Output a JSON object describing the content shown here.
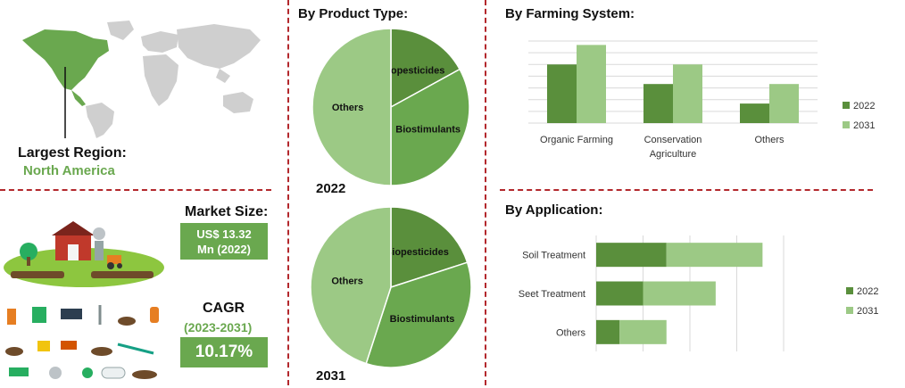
{
  "colors": {
    "dark_green": "#5a8f3c",
    "mid_green": "#6aa84f",
    "light_green": "#9cc985",
    "divider_red": "#b3282d"
  },
  "region": {
    "label": "Largest Region:",
    "value": "North America"
  },
  "market": {
    "size_label": "Market Size:",
    "size_value_line1": "US$ 13.32",
    "size_value_line2": "Mn (2022)",
    "cagr_label": "CAGR",
    "cagr_period": "(2023-2031)",
    "cagr_value": "10.17%"
  },
  "product_type": {
    "heading": "By Product Type:"
  },
  "farming_system": {
    "heading": "By Farming System:"
  },
  "application": {
    "heading": "By Application:"
  },
  "icons": [
    "world-map-icon",
    "farm-icon",
    "tools-icon"
  ],
  "chart_data": [
    {
      "type": "pie",
      "name": "product-type-2022",
      "title": "2022",
      "categories": [
        "Biopesticides",
        "Biostimulants",
        "Others"
      ],
      "values": [
        17,
        33,
        50
      ],
      "colors": [
        "#5a8f3c",
        "#6aa84f",
        "#9cc985"
      ]
    },
    {
      "type": "pie",
      "name": "product-type-2031",
      "title": "2031",
      "categories": [
        "Biopesticides",
        "Biostimulants",
        "Others"
      ],
      "values": [
        20,
        35,
        45
      ],
      "colors": [
        "#5a8f3c",
        "#6aa84f",
        "#9cc985"
      ]
    },
    {
      "type": "bar",
      "name": "farming-system",
      "categories": [
        "Organic Farming",
        "Conservation Agriculture",
        "Others"
      ],
      "category_lines": [
        [
          "Organic Farming"
        ],
        [
          "Conservation",
          "Agriculture"
        ],
        [
          "Others"
        ]
      ],
      "series": [
        {
          "name": "2022",
          "values": [
            3,
            2,
            1
          ],
          "color": "#5a8f3c"
        },
        {
          "name": "2031",
          "values": [
            4,
            3,
            2
          ],
          "color": "#9cc985"
        }
      ],
      "ylim": [
        0,
        4.2
      ],
      "grid": true,
      "legend": "right"
    },
    {
      "type": "bar",
      "orientation": "horizontal",
      "stacked": true,
      "name": "application",
      "categories": [
        "Soil Treatment",
        "Seet Treatment",
        "Others"
      ],
      "series": [
        {
          "name": "2022",
          "values": [
            3,
            2,
            1
          ],
          "color": "#5a8f3c"
        },
        {
          "name": "2031",
          "values": [
            4.1,
            3.1,
            2
          ],
          "color": "#9cc985"
        }
      ],
      "xlim": [
        0,
        8
      ],
      "grid": true,
      "legend": "right"
    }
  ]
}
